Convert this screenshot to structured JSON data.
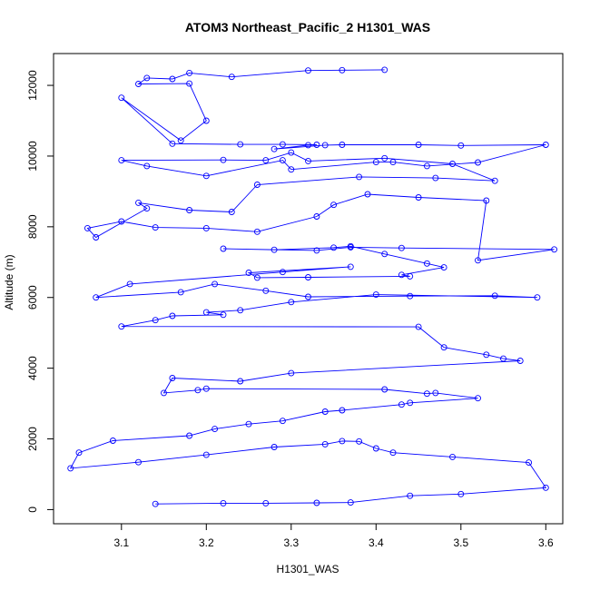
{
  "chart_data": {
    "type": "line",
    "title": "ATOM3 Northeast_Pacific_2 H1301_WAS",
    "xlabel": "H1301_WAS",
    "ylabel": "Altitude (m)",
    "xlim": [
      3.02,
      3.62
    ],
    "ylim": [
      -400,
      12900
    ],
    "xticks": [
      "3.1",
      "3.2",
      "3.3",
      "3.4",
      "3.5",
      "3.6"
    ],
    "yticks": [
      "0",
      "2000",
      "4000",
      "6000",
      "8000",
      "10000",
      "12000"
    ],
    "marker": "open-circle",
    "grid": false,
    "colors": {
      "series": "#0000ff",
      "axes": "#000000"
    },
    "series": [
      {
        "x": [
          3.41,
          3.36,
          3.32,
          3.23,
          3.18,
          3.16,
          3.13,
          3.12,
          3.18,
          3.2,
          3.17,
          3.1,
          3.16,
          3.24,
          3.29,
          3.33,
          3.32,
          3.28,
          3.34,
          3.36,
          3.45,
          3.5,
          3.6,
          3.52,
          3.46,
          3.42,
          3.4,
          3.3,
          3.29,
          3.2,
          3.13,
          3.1,
          3.22,
          3.27,
          3.3,
          3.32,
          3.41,
          3.49,
          3.54,
          3.47,
          3.38,
          3.26,
          3.23,
          3.18,
          3.12,
          3.13,
          3.07,
          3.06,
          3.1,
          3.14,
          3.2,
          3.26,
          3.33,
          3.35,
          3.39,
          3.45,
          3.53,
          3.52,
          3.61,
          3.43,
          3.37,
          3.33,
          3.22,
          3.28,
          3.35,
          3.37,
          3.41,
          3.46,
          3.48,
          3.43,
          3.44,
          3.32,
          3.26,
          3.25,
          3.37,
          3.29,
          3.11,
          3.07,
          3.17,
          3.21,
          3.27,
          3.32,
          3.44,
          3.54,
          3.59,
          3.4,
          3.3,
          3.24,
          3.2,
          3.22,
          3.16,
          3.14,
          3.1,
          3.45,
          3.48,
          3.53,
          3.55,
          3.57,
          3.3,
          3.24,
          3.16,
          3.15,
          3.19,
          3.2,
          3.41,
          3.46,
          3.47,
          3.52,
          3.44,
          3.43,
          3.36,
          3.34,
          3.29,
          3.25,
          3.21,
          3.18,
          3.09,
          3.05,
          3.04,
          3.12,
          3.2,
          3.28,
          3.34,
          3.36,
          3.38,
          3.4,
          3.42,
          3.49,
          3.58,
          3.6,
          3.5,
          3.44,
          3.37,
          3.33,
          3.27,
          3.22,
          3.14
        ]
      }
    ],
    "altitudes": [
      12440,
      12430,
      12420,
      12240,
      12350,
      12180,
      12210,
      12040,
      12050,
      11000,
      10440,
      11650,
      10350,
      10330,
      10330,
      10320,
      10310,
      10200,
      10310,
      10320,
      10320,
      10300,
      10320,
      9820,
      9720,
      9830,
      9830,
      9620,
      9880,
      9440,
      9720,
      9880,
      9890,
      9880,
      10100,
      9860,
      9940,
      9780,
      9300,
      9380,
      9410,
      9190,
      8420,
      8470,
      8680,
      8520,
      7700,
      7960,
      8150,
      7980,
      7960,
      7860,
      8290,
      8620,
      8920,
      8830,
      8740,
      7050,
      7360,
      7400,
      7420,
      7330,
      7380,
      7350,
      7410,
      7450,
      7230,
      6960,
      6850,
      6640,
      6600,
      6570,
      6560,
      6700,
      6870,
      6720,
      6380,
      6000,
      6150,
      6380,
      6190,
      6020,
      6040,
      6050,
      6000,
      6080,
      5870,
      5640,
      5580,
      5510,
      5480,
      5360,
      5180,
      5170,
      4590,
      4380,
      4270,
      4210,
      3860,
      3630,
      3720,
      3300,
      3380,
      3420,
      3400,
      3280,
      3300,
      3150,
      3020,
      2970,
      2810,
      2770,
      2510,
      2420,
      2280,
      2090,
      1950,
      1610,
      1170,
      1340,
      1550,
      1770,
      1850,
      1940,
      1930,
      1730,
      1610,
      1490,
      1330,
      620,
      440,
      390,
      200,
      190,
      180,
      180,
      160
    ]
  }
}
